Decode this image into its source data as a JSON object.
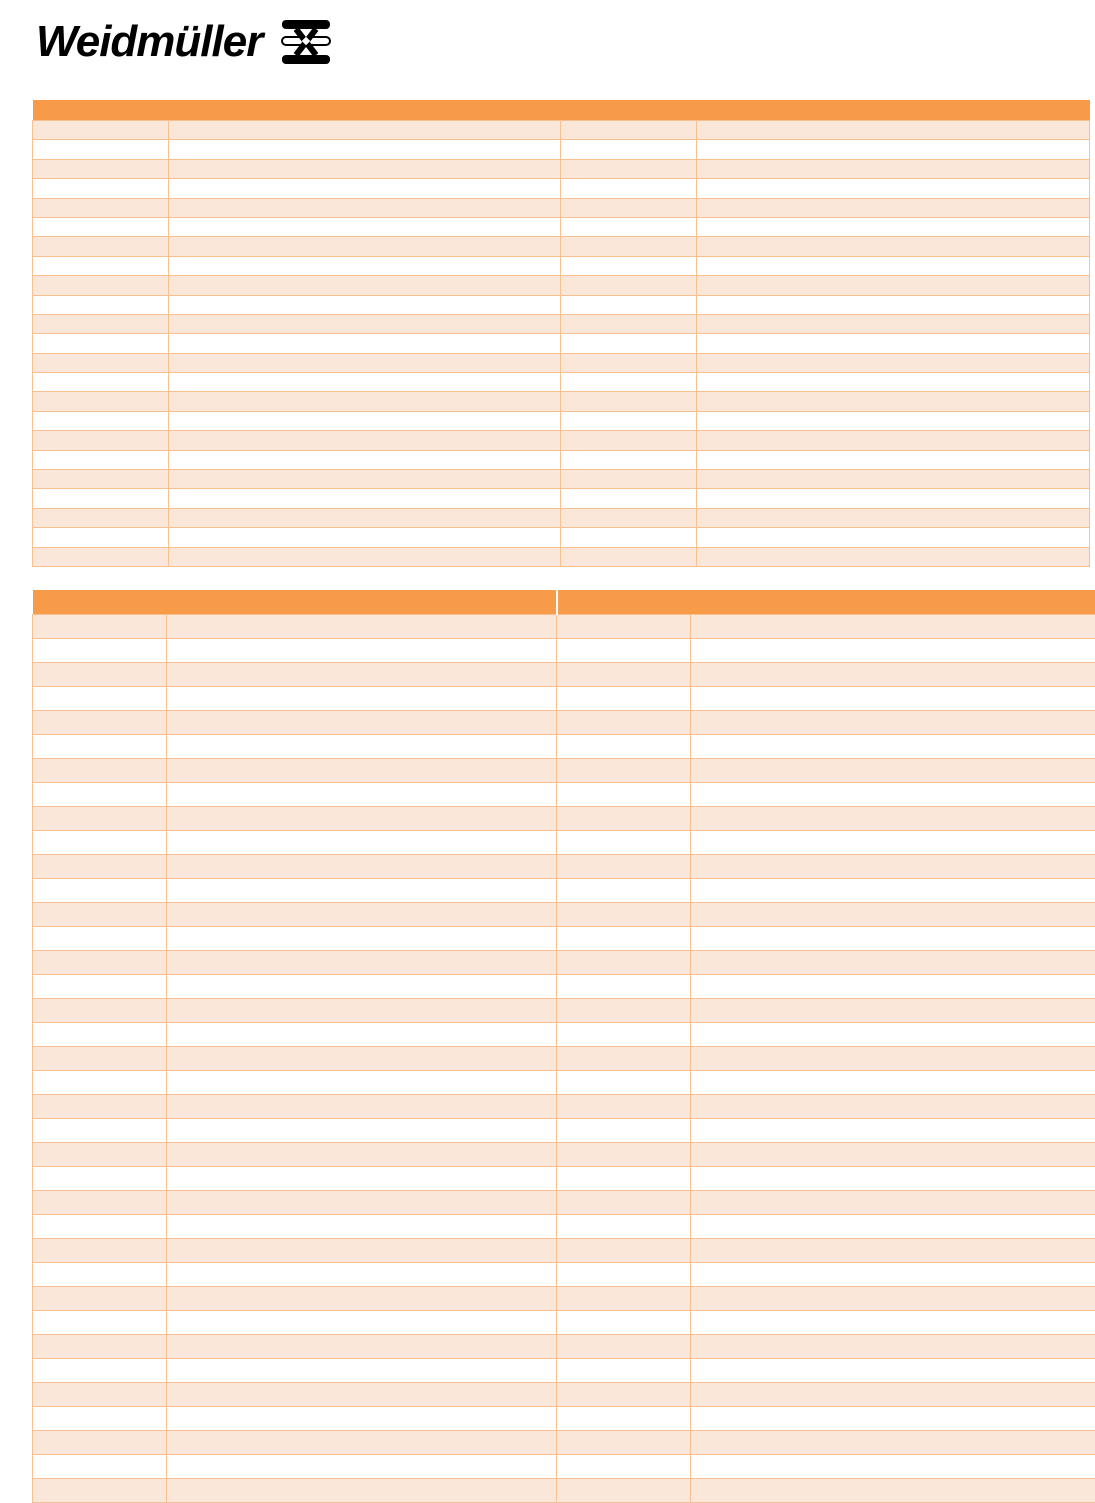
{
  "logo": {
    "text": "Weidmüller"
  },
  "colors": {
    "header": "#f79a4a",
    "row_alt": "#fbe7da",
    "grid": "#f9c08f"
  }
}
